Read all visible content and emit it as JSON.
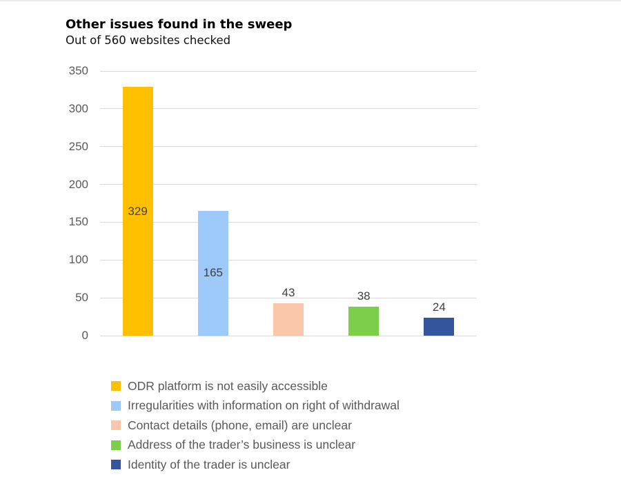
{
  "header": {
    "title": "Other issues found in the sweep",
    "subtitle": "Out of 560 websites checked"
  },
  "chart_data": {
    "type": "bar",
    "title": "Other issues found in the sweep",
    "subtitle": "Out of 560 websites checked",
    "categories": [
      "ODR platform is not easily accessible",
      "Irregularities with information on right of withdrawal",
      "Contact details (phone, email) are unclear",
      "Address of the trader’s business is unclear",
      "Identity of the trader is unclear"
    ],
    "values": [
      329,
      165,
      43,
      38,
      24
    ],
    "value_labels": [
      "329",
      "165",
      "43",
      "38",
      "24"
    ],
    "bar_colors": [
      "#FFC000",
      "#9DC9FB",
      "#F8C8A8",
      "#7DCE4B",
      "#34549B"
    ],
    "yticks": [
      350,
      300,
      250,
      200,
      150,
      100,
      50,
      0
    ],
    "ylim": [
      0,
      350
    ],
    "xlabel": "",
    "ylabel": "",
    "grid": true,
    "legend_position": "bottom",
    "gridline_color": "#d9d9d9",
    "axis_text_color": "#595959",
    "value_label_color": "#404040"
  }
}
